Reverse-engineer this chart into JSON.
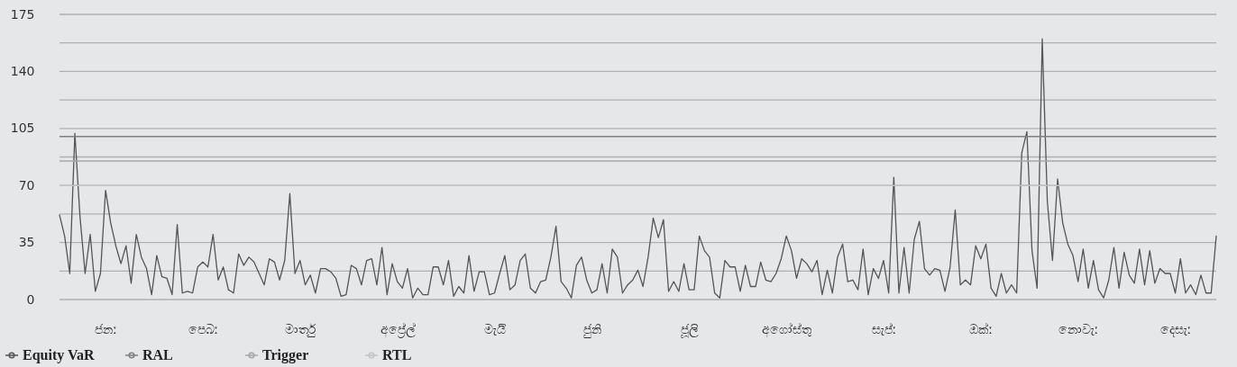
{
  "chart_data": {
    "type": "line",
    "ylim": [
      0,
      175
    ],
    "yticks": [
      0,
      {
        "value": 17.5,
        "label": null
      },
      35,
      {
        "value": 52.5,
        "label": null
      },
      70,
      {
        "value": 87.5,
        "label": null
      },
      105,
      {
        "value": 122.5,
        "label": null
      },
      140,
      {
        "value": 157.5,
        "label": null
      },
      175
    ],
    "categories": [
      null,
      null,
      null,
      null,
      null,
      null,
      null,
      null,
      null,
      "ජනː",
      null,
      null,
      null,
      null,
      null,
      null,
      null,
      null,
      null,
      null,
      null,
      null,
      null,
      null,
      null,
      null,
      null,
      null,
      "පෙබː",
      null,
      null,
      null,
      null,
      null,
      null,
      null,
      null,
      null,
      null,
      null,
      null,
      null,
      null,
      null,
      null,
      null,
      null,
      "මාර්තු",
      null,
      null,
      null,
      null,
      null,
      null,
      null,
      null,
      null,
      null,
      null,
      null,
      null,
      null,
      null,
      null,
      null,
      null,
      "අප්‍රේල්",
      null,
      null,
      null,
      null,
      null,
      null,
      null,
      null,
      null,
      null,
      null,
      null,
      null,
      null,
      null,
      null,
      null,
      null,
      "මැයි",
      null,
      null,
      null,
      null,
      null,
      null,
      null,
      null,
      null,
      null,
      null,
      null,
      null,
      null,
      null,
      null,
      null,
      null,
      "ජුනි",
      null,
      null,
      null,
      null,
      null,
      null,
      null,
      null,
      null,
      null,
      null,
      null,
      null,
      null,
      null,
      null,
      null,
      null,
      "ජූලි",
      null,
      null,
      null,
      null,
      null,
      null,
      null,
      null,
      null,
      null,
      null,
      null,
      null,
      null,
      null,
      null,
      null,
      null,
      "අගෝස්තු",
      null,
      null,
      null,
      null,
      null,
      null,
      null,
      null,
      null,
      null,
      null,
      null,
      null,
      null,
      null,
      null,
      null,
      null,
      "සැප්ː",
      null,
      null,
      null,
      null,
      null,
      null,
      null,
      null,
      null,
      null,
      null,
      null,
      null,
      null,
      null,
      null,
      null,
      null,
      "ඔක්ː",
      null,
      null,
      null,
      null,
      null,
      null,
      null,
      null,
      null,
      null,
      null,
      null,
      null,
      null,
      null,
      null,
      null,
      null,
      "නොවැː",
      null,
      null,
      null,
      null,
      null,
      null,
      null,
      null,
      null,
      null,
      null,
      null,
      null,
      null,
      null,
      null,
      null,
      null,
      "දෙසැː",
      null,
      null,
      null,
      null,
      null,
      null,
      null,
      null
    ],
    "grid": "y",
    "legend": "bottom",
    "series": [
      {
        "name": "Equity VaR",
        "color": "#555555",
        "values": [
          52,
          39,
          16,
          102,
          51,
          16,
          40,
          5,
          16,
          67,
          47,
          33,
          22,
          33,
          10,
          40,
          26,
          19,
          3,
          27,
          14,
          13,
          3,
          46,
          4,
          5,
          4,
          20,
          23,
          20,
          40,
          12,
          20,
          6,
          4,
          28,
          21,
          26,
          23,
          16,
          9,
          25,
          23,
          12,
          24,
          65,
          16,
          24,
          9,
          15,
          4,
          19,
          19,
          17,
          13,
          2,
          3,
          21,
          19,
          9,
          24,
          25,
          9,
          32,
          3,
          22,
          11,
          7,
          19,
          1,
          7,
          3,
          3,
          20,
          20,
          9,
          24,
          2,
          8,
          4,
          27,
          5,
          17,
          17,
          3,
          4,
          16,
          27,
          6,
          9,
          24,
          28,
          7,
          4,
          11,
          12,
          26,
          45,
          11,
          7,
          1,
          21,
          26,
          12,
          4,
          6,
          22,
          4,
          31,
          26,
          4,
          9,
          12,
          18,
          8,
          26,
          50,
          38,
          49,
          5,
          11,
          5,
          22,
          6,
          6,
          39,
          30,
          26,
          4,
          1,
          24,
          20,
          20,
          5,
          21,
          8,
          8,
          23,
          12,
          11,
          16,
          25,
          39,
          30,
          13,
          25,
          22,
          17,
          24,
          3,
          18,
          4,
          26,
          34,
          11,
          12,
          6,
          31,
          3,
          19,
          13,
          24,
          4,
          75,
          4,
          32,
          4,
          37,
          48,
          19,
          15,
          19,
          18,
          5,
          20,
          55,
          9,
          12,
          9,
          33,
          25,
          34,
          7,
          2,
          16,
          4,
          9,
          4,
          90,
          103,
          30,
          7,
          160,
          60,
          24,
          74,
          47,
          34,
          27,
          11,
          31,
          7,
          24,
          6,
          1,
          12,
          32,
          7,
          29,
          15,
          10,
          31,
          9,
          30,
          10,
          19,
          16,
          16,
          4,
          25,
          4,
          9,
          3,
          15,
          4,
          4,
          39
        ]
      }
    ],
    "ref_lines": [
      {
        "axis": "y",
        "value": 100,
        "label": "RAL",
        "color": "#808080"
      },
      {
        "axis": "y",
        "value": 85,
        "label": "Trigger",
        "color": "#a6a6a6"
      },
      {
        "axis": "y",
        "value": 70,
        "label": "RTL",
        "color": "#c4c4c4"
      }
    ]
  }
}
